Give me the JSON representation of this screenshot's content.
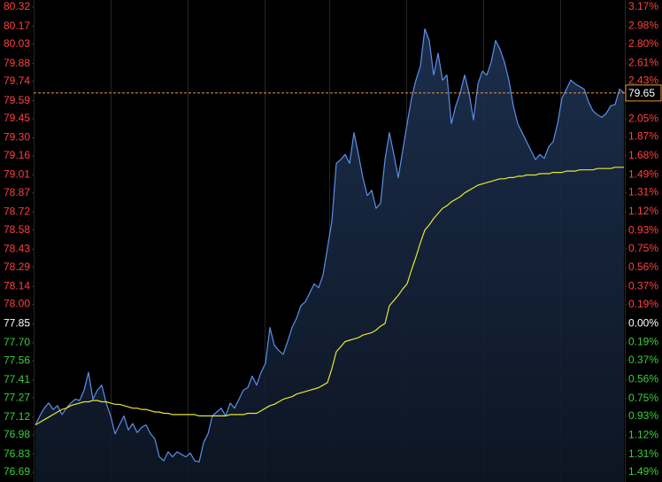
{
  "chart_data": {
    "type": "line",
    "ylim": [
      76.69,
      80.32
    ],
    "yticks": [
      80.32,
      80.17,
      80.03,
      79.88,
      79.74,
      79.59,
      79.45,
      {
        "value": 79.3,
        "label": "79.30"
      },
      79.16,
      79.01,
      78.87,
      78.72,
      78.58,
      78.43,
      78.29,
      78.14,
      {
        "value": 78.0,
        "label": "78.00"
      },
      77.85,
      {
        "value": 77.7,
        "label": "77.70"
      },
      77.56,
      77.41,
      77.27,
      77.12,
      76.98,
      76.83,
      76.69
    ],
    "y2lim": [
      -1.49,
      3.17
    ],
    "y2ticks": [
      {
        "value": 3.17,
        "label": "3.17%"
      },
      {
        "value": 2.98,
        "label": "2.98%"
      },
      {
        "value": 2.8,
        "label": "2.80%"
      },
      {
        "value": 2.61,
        "label": "2.61%"
      },
      {
        "value": 2.43,
        "label": "2.43%"
      },
      {
        "value": 2.05,
        "label": "2.05%"
      },
      {
        "value": 1.87,
        "label": "1.87%"
      },
      {
        "value": 1.68,
        "label": "1.68%"
      },
      {
        "value": 1.49,
        "label": "1.49%"
      },
      {
        "value": 1.31,
        "label": "1.31%"
      },
      {
        "value": 1.12,
        "label": "1.12%"
      },
      {
        "value": 0.93,
        "label": "0.93%"
      },
      {
        "value": 0.75,
        "label": "0.75%"
      },
      {
        "value": 0.56,
        "label": "0.56%"
      },
      {
        "value": 0.37,
        "label": "0.37%"
      },
      {
        "value": 0.19,
        "label": "0.19%"
      },
      {
        "value": 0,
        "label": "0.00%"
      },
      {
        "value": -0.19,
        "label": "0.19%"
      },
      {
        "value": -0.37,
        "label": "0.37%"
      },
      {
        "value": -0.56,
        "label": "0.56%"
      },
      {
        "value": -0.75,
        "label": "0.75%"
      },
      {
        "value": -0.93,
        "label": "0.93%"
      },
      {
        "value": -1.12,
        "label": "1.12%"
      },
      {
        "value": -1.31,
        "label": "1.31%"
      },
      {
        "value": -1.49,
        "label": "1.49%"
      }
    ],
    "up_color": "#ff4040",
    "down_color": "#39d039",
    "flat_color": "#ffffff",
    "current_price": 79.65,
    "current_price_color": "#e8963a",
    "series": [
      {
        "color": "#5b8fe8",
        "fill": true,
        "values": [
          77.06,
          77.13,
          77.19,
          77.23,
          77.18,
          77.21,
          77.14,
          77.19,
          77.23,
          77.26,
          77.25,
          77.33,
          77.47,
          77.26,
          77.33,
          77.37,
          77.23,
          77.13,
          76.99,
          77.06,
          77.13,
          77.02,
          77.07,
          77.0,
          77.04,
          77.06,
          76.99,
          76.95,
          76.81,
          76.78,
          76.85,
          76.81,
          76.85,
          76.83,
          76.81,
          76.84,
          76.78,
          76.77,
          76.92,
          76.99,
          77.13,
          77.16,
          77.19,
          77.13,
          77.23,
          77.19,
          77.26,
          77.33,
          77.35,
          77.44,
          77.37,
          77.47,
          77.54,
          77.82,
          77.68,
          77.64,
          77.61,
          77.71,
          77.82,
          77.89,
          77.99,
          78.02,
          78.09,
          78.16,
          78.13,
          78.23,
          78.44,
          78.65,
          79.1,
          79.13,
          79.17,
          79.1,
          79.34,
          79.17,
          78.99,
          78.85,
          78.89,
          78.75,
          78.79,
          79.13,
          79.34,
          79.17,
          78.99,
          79.2,
          79.41,
          79.61,
          79.75,
          79.86,
          80.15,
          80.06,
          79.79,
          79.96,
          79.75,
          79.79,
          79.41,
          79.55,
          79.65,
          79.79,
          79.65,
          79.44,
          79.72,
          79.82,
          79.79,
          79.89,
          80.06,
          79.99,
          79.89,
          79.75,
          79.55,
          79.41,
          79.34,
          79.27,
          79.2,
          79.13,
          79.17,
          79.14,
          79.23,
          79.27,
          79.41,
          79.61,
          79.68,
          79.75,
          79.72,
          79.7,
          79.68,
          79.58,
          79.51,
          79.48,
          79.46,
          79.49,
          79.55,
          79.56,
          79.68,
          79.65
        ]
      },
      {
        "color": "#e6e632",
        "fill": false,
        "values": [
          77.06,
          77.08,
          77.1,
          77.12,
          77.14,
          77.16,
          77.18,
          77.19,
          77.21,
          77.22,
          77.23,
          77.24,
          77.24,
          77.25,
          77.25,
          77.24,
          77.24,
          77.23,
          77.22,
          77.22,
          77.21,
          77.2,
          77.19,
          77.19,
          77.18,
          77.18,
          77.17,
          77.16,
          77.16,
          77.15,
          77.15,
          77.14,
          77.14,
          77.14,
          77.14,
          77.14,
          77.14,
          77.13,
          77.13,
          77.13,
          77.13,
          77.13,
          77.13,
          77.13,
          77.14,
          77.14,
          77.14,
          77.14,
          77.15,
          77.15,
          77.15,
          77.17,
          77.19,
          77.21,
          77.22,
          77.24,
          77.26,
          77.27,
          77.28,
          77.3,
          77.31,
          77.32,
          77.33,
          77.34,
          77.35,
          77.37,
          77.39,
          77.5,
          77.63,
          77.67,
          77.71,
          77.72,
          77.73,
          77.74,
          77.76,
          77.77,
          77.78,
          77.8,
          77.83,
          77.85,
          77.99,
          78.03,
          78.07,
          78.12,
          78.16,
          78.27,
          78.37,
          78.48,
          78.58,
          78.62,
          78.67,
          78.71,
          78.75,
          78.77,
          78.8,
          78.82,
          78.84,
          78.87,
          78.89,
          78.91,
          78.93,
          78.94,
          78.95,
          78.96,
          78.97,
          78.98,
          78.98,
          78.99,
          78.99,
          79.0,
          79.0,
          79.01,
          79.01,
          79.01,
          79.02,
          79.02,
          79.02,
          79.03,
          79.03,
          79.03,
          79.04,
          79.04,
          79.04,
          79.05,
          79.05,
          79.05,
          79.05,
          79.06,
          79.06,
          79.06,
          79.06,
          79.07,
          79.07,
          79.07
        ]
      }
    ]
  }
}
